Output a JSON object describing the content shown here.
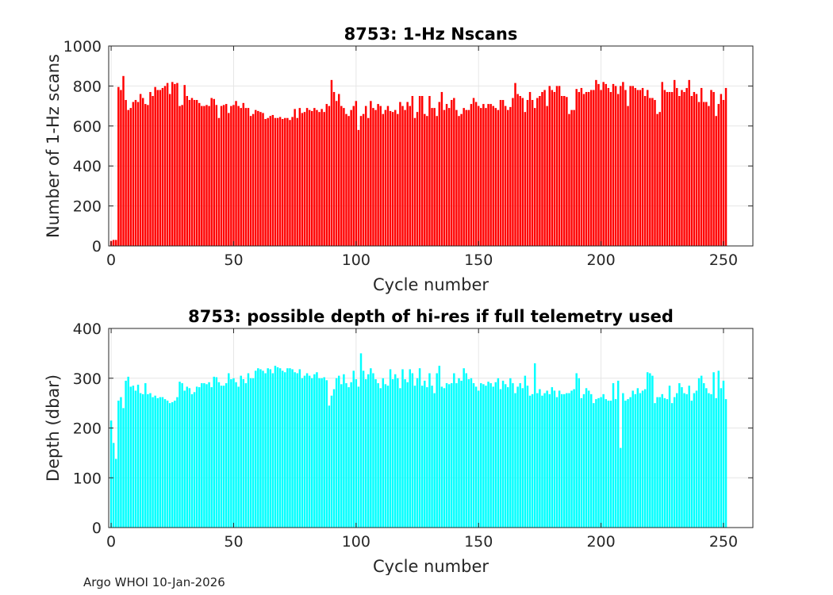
{
  "footer_text": "Argo WHOI 10-Jan-2026",
  "chart_data": [
    {
      "type": "bar",
      "title": "8753: 1-Hz Nscans",
      "xlabel": "Cycle number",
      "ylabel": "Number of 1-Hz scans",
      "xlim": [
        -1,
        262
      ],
      "ylim": [
        0,
        1000
      ],
      "xticks": [
        0,
        50,
        100,
        150,
        200,
        250
      ],
      "yticks": [
        0,
        200,
        400,
        600,
        800,
        1000
      ],
      "color": "#ff0000",
      "grid": true,
      "x_start": 0,
      "values": [
        25,
        30,
        30,
        795,
        780,
        850,
        730,
        680,
        690,
        720,
        730,
        720,
        760,
        740,
        710,
        705,
        770,
        750,
        795,
        780,
        780,
        790,
        800,
        815,
        760,
        820,
        810,
        815,
        700,
        705,
        805,
        750,
        730,
        740,
        730,
        730,
        715,
        700,
        700,
        705,
        700,
        740,
        735,
        705,
        640,
        700,
        705,
        710,
        665,
        700,
        705,
        725,
        700,
        690,
        715,
        690,
        690,
        650,
        660,
        680,
        675,
        670,
        665,
        635,
        640,
        650,
        655,
        640,
        640,
        645,
        635,
        640,
        640,
        630,
        645,
        685,
        640,
        690,
        665,
        670,
        690,
        680,
        675,
        690,
        680,
        670,
        685,
        670,
        710,
        700,
        830,
        770,
        725,
        760,
        700,
        690,
        660,
        650,
        680,
        700,
        725,
        580,
        650,
        660,
        700,
        640,
        725,
        690,
        680,
        710,
        700,
        660,
        680,
        700,
        675,
        670,
        680,
        660,
        720,
        700,
        680,
        720,
        700,
        750,
        640,
        670,
        750,
        750,
        660,
        650,
        750,
        690,
        690,
        650,
        720,
        770,
        680,
        710,
        690,
        730,
        740,
        680,
        650,
        660,
        690,
        680,
        680,
        710,
        740,
        720,
        700,
        690,
        710,
        690,
        710,
        710,
        700,
        690,
        680,
        730,
        730,
        700,
        680,
        695,
        740,
        815,
        760,
        750,
        740,
        670,
        730,
        770,
        730,
        690,
        740,
        750,
        770,
        780,
        700,
        800,
        780,
        770,
        800,
        800,
        750,
        750,
        745,
        660,
        680,
        680,
        785,
        770,
        790,
        760,
        770,
        770,
        780,
        780,
        830,
        810,
        780,
        820,
        810,
        790,
        770,
        810,
        800,
        760,
        800,
        820,
        780,
        700,
        800,
        800,
        790,
        780,
        780,
        790,
        750,
        780,
        740,
        740,
        730,
        660,
        670,
        820,
        780,
        770,
        770,
        770,
        830,
        790,
        750,
        780,
        770,
        790,
        830,
        750,
        770,
        760,
        720,
        790,
        720,
        720,
        700,
        780,
        770,
        650,
        710,
        760,
        730,
        790
      ]
    },
    {
      "type": "bar",
      "title": "8753: possible depth of hi-res if full telemetry used",
      "xlabel": "Cycle number",
      "ylabel": "Depth (dbar)",
      "xlim": [
        -1,
        262
      ],
      "ylim": [
        0,
        400
      ],
      "xticks": [
        0,
        50,
        100,
        150,
        200,
        250
      ],
      "yticks": [
        0,
        100,
        200,
        300,
        400
      ],
      "color": "#00ffff",
      "grid": true,
      "x_start": 0,
      "values": [
        215,
        170,
        138,
        255,
        262,
        240,
        295,
        303,
        283,
        285,
        275,
        287,
        270,
        268,
        290,
        268,
        270,
        262,
        265,
        260,
        262,
        262,
        258,
        255,
        250,
        252,
        255,
        262,
        293,
        290,
        275,
        283,
        280,
        268,
        272,
        283,
        282,
        290,
        290,
        288,
        292,
        282,
        303,
        302,
        292,
        285,
        285,
        290,
        310,
        298,
        300,
        292,
        283,
        305,
        298,
        290,
        310,
        300,
        300,
        315,
        320,
        318,
        315,
        310,
        320,
        318,
        310,
        325,
        322,
        320,
        315,
        312,
        320,
        320,
        318,
        312,
        310,
        318,
        300,
        305,
        310,
        305,
        300,
        308,
        312,
        300,
        300,
        302,
        296,
        245,
        265,
        278,
        300,
        305,
        288,
        308,
        290,
        282,
        292,
        315,
        298,
        283,
        350,
        315,
        298,
        308,
        320,
        310,
        298,
        290,
        280,
        300,
        288,
        285,
        318,
        298,
        308,
        300,
        280,
        318,
        298,
        292,
        318,
        310,
        285,
        300,
        320,
        285,
        295,
        282,
        310,
        285,
        270,
        310,
        325,
        283,
        280,
        290,
        288,
        290,
        310,
        290,
        300,
        295,
        320,
        310,
        298,
        300,
        290,
        283,
        275,
        290,
        288,
        285,
        293,
        290,
        283,
        292,
        300,
        278,
        295,
        288,
        282,
        300,
        290,
        270,
        283,
        290,
        280,
        305,
        285,
        265,
        268,
        330,
        270,
        278,
        265,
        270,
        275,
        268,
        282,
        275,
        262,
        275,
        268,
        268,
        270,
        270,
        275,
        278,
        310,
        300,
        260,
        268,
        280,
        275,
        268,
        250,
        258,
        260,
        262,
        268,
        258,
        255,
        255,
        290,
        258,
        295,
        160,
        270,
        255,
        258,
        262,
        275,
        268,
        280,
        270,
        275,
        278,
        312,
        310,
        305,
        250,
        262,
        262,
        268,
        260,
        258,
        285,
        250,
        262,
        270,
        290,
        282,
        270,
        268,
        285,
        255,
        270,
        275,
        300,
        305,
        290,
        280,
        270,
        268,
        312,
        260,
        315,
        280,
        295,
        258
      ]
    }
  ]
}
